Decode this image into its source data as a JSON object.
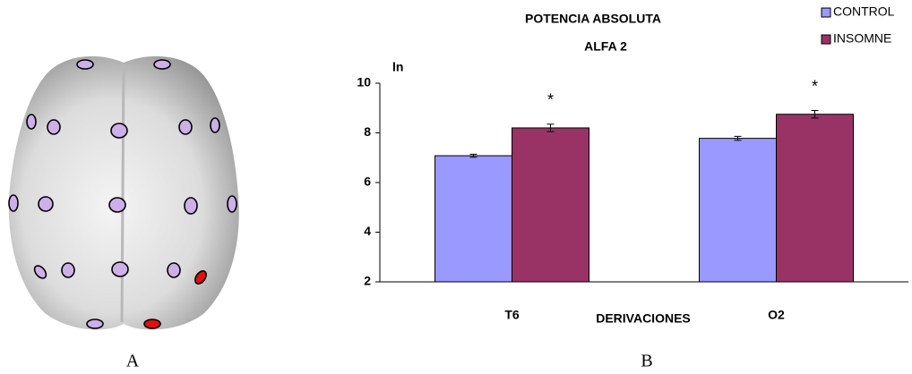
{
  "panel_labels": [
    "A",
    "B"
  ],
  "chart_data": {
    "type": "bar",
    "title": "POTENCIA ABSOLUTA",
    "subtitle": "ALFA 2",
    "y_label": "ln",
    "x_label": "DERIVACIONES",
    "categories": [
      "T6",
      "O2"
    ],
    "series": [
      {
        "name": "CONTROL",
        "color": "#9999ff",
        "values": [
          7.08,
          7.78
        ],
        "errors": [
          0.06,
          0.08
        ]
      },
      {
        "name": "INSOMNE",
        "color": "#993366",
        "values": [
          8.2,
          8.75
        ],
        "errors": [
          0.15,
          0.15
        ]
      }
    ],
    "annotations": [
      "*",
      "*"
    ],
    "ylim": [
      2,
      10
    ],
    "yticks": [
      2,
      4,
      6,
      8,
      10
    ],
    "legend": "top-right"
  }
}
